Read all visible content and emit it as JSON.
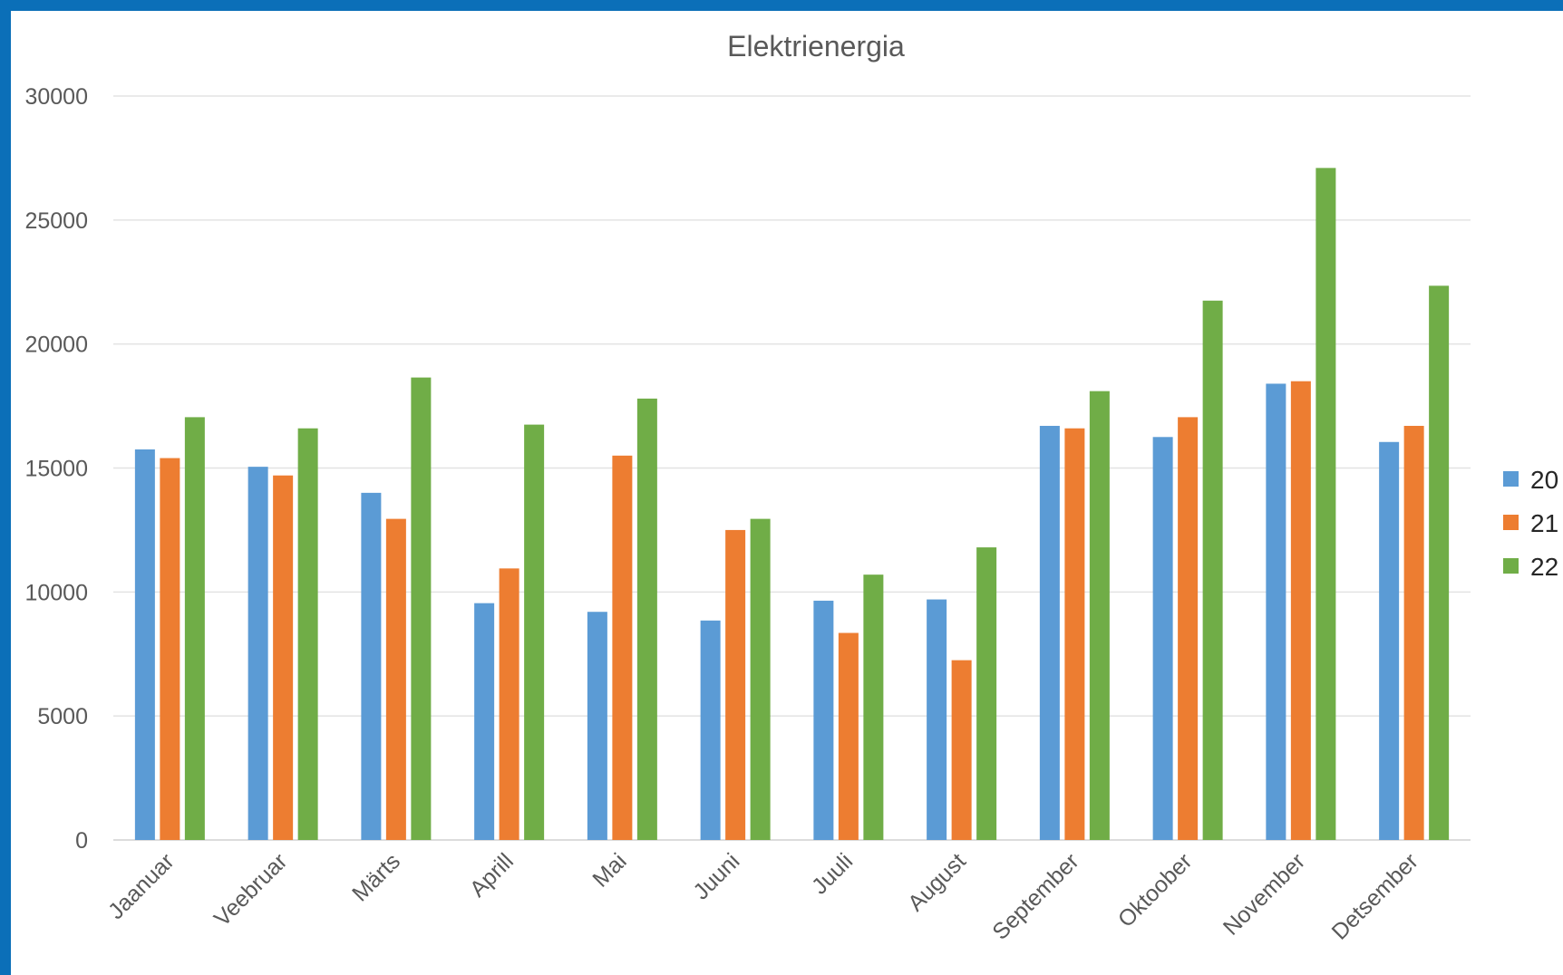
{
  "chart_data": {
    "type": "bar",
    "title": "Elektrienergia",
    "xlabel": "",
    "ylabel": "",
    "categories": [
      "Jaanuar",
      "Veebruar",
      "Märts",
      "Aprill",
      "Mai",
      "Juuni",
      "Juuli",
      "August",
      "September",
      "Oktoober",
      "November",
      "Detsember"
    ],
    "series": [
      {
        "name": "20",
        "color": "#5b9bd5",
        "values": [
          15750,
          15050,
          14000,
          9550,
          9200,
          8850,
          9650,
          9700,
          16700,
          16250,
          18400,
          16050
        ]
      },
      {
        "name": "21",
        "color": "#ed7d31",
        "values": [
          15400,
          14700,
          12950,
          10950,
          15500,
          12500,
          8350,
          7250,
          16600,
          17050,
          18500,
          16700
        ]
      },
      {
        "name": "22",
        "color": "#70ad47",
        "values": [
          17050,
          16600,
          18650,
          16750,
          17800,
          12950,
          10700,
          11800,
          18100,
          21750,
          27100,
          22350
        ]
      }
    ],
    "ylim": [
      0,
      30000
    ],
    "yticks": [
      "0",
      "5000",
      "10000",
      "15000",
      "20000",
      "25000",
      "30000"
    ],
    "grid": true,
    "legend_position": "right"
  }
}
